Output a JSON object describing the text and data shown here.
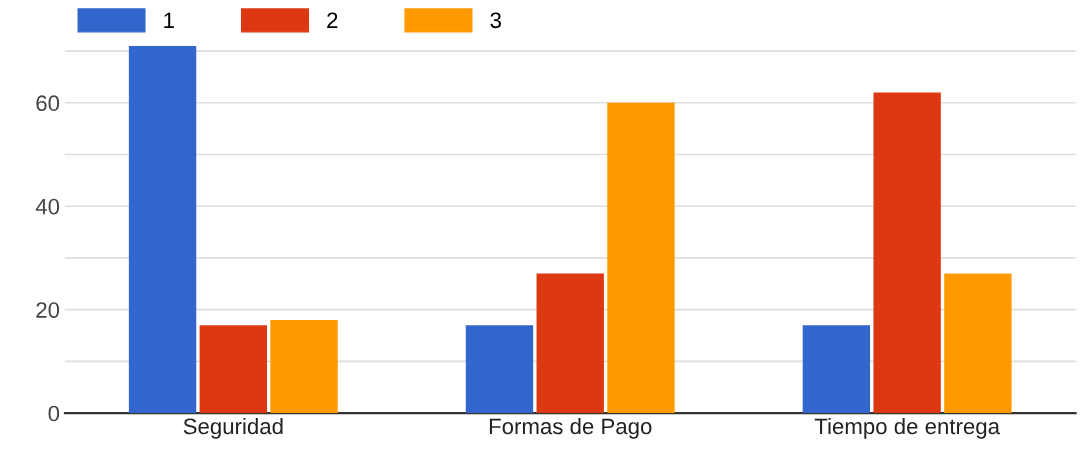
{
  "chart_data": {
    "type": "bar",
    "categories": [
      "Seguridad",
      "Formas de Pago",
      "Tiempo de entrega"
    ],
    "series": [
      {
        "name": "1",
        "color": "#3366cc",
        "values": [
          71,
          17,
          17
        ]
      },
      {
        "name": "2",
        "color": "#dc3912",
        "values": [
          17,
          27,
          62
        ]
      },
      {
        "name": "3",
        "color": "#ff9900",
        "values": [
          18,
          60,
          27
        ]
      }
    ],
    "ylim": [
      0,
      71
    ],
    "yticks": [
      0,
      {
        "value": 10,
        "label": null
      },
      20,
      {
        "value": 30,
        "label": null
      },
      40,
      {
        "value": 50,
        "label": null
      },
      60,
      {
        "value": 70,
        "label": null
      }
    ],
    "grid": "y",
    "legend": "top left"
  }
}
